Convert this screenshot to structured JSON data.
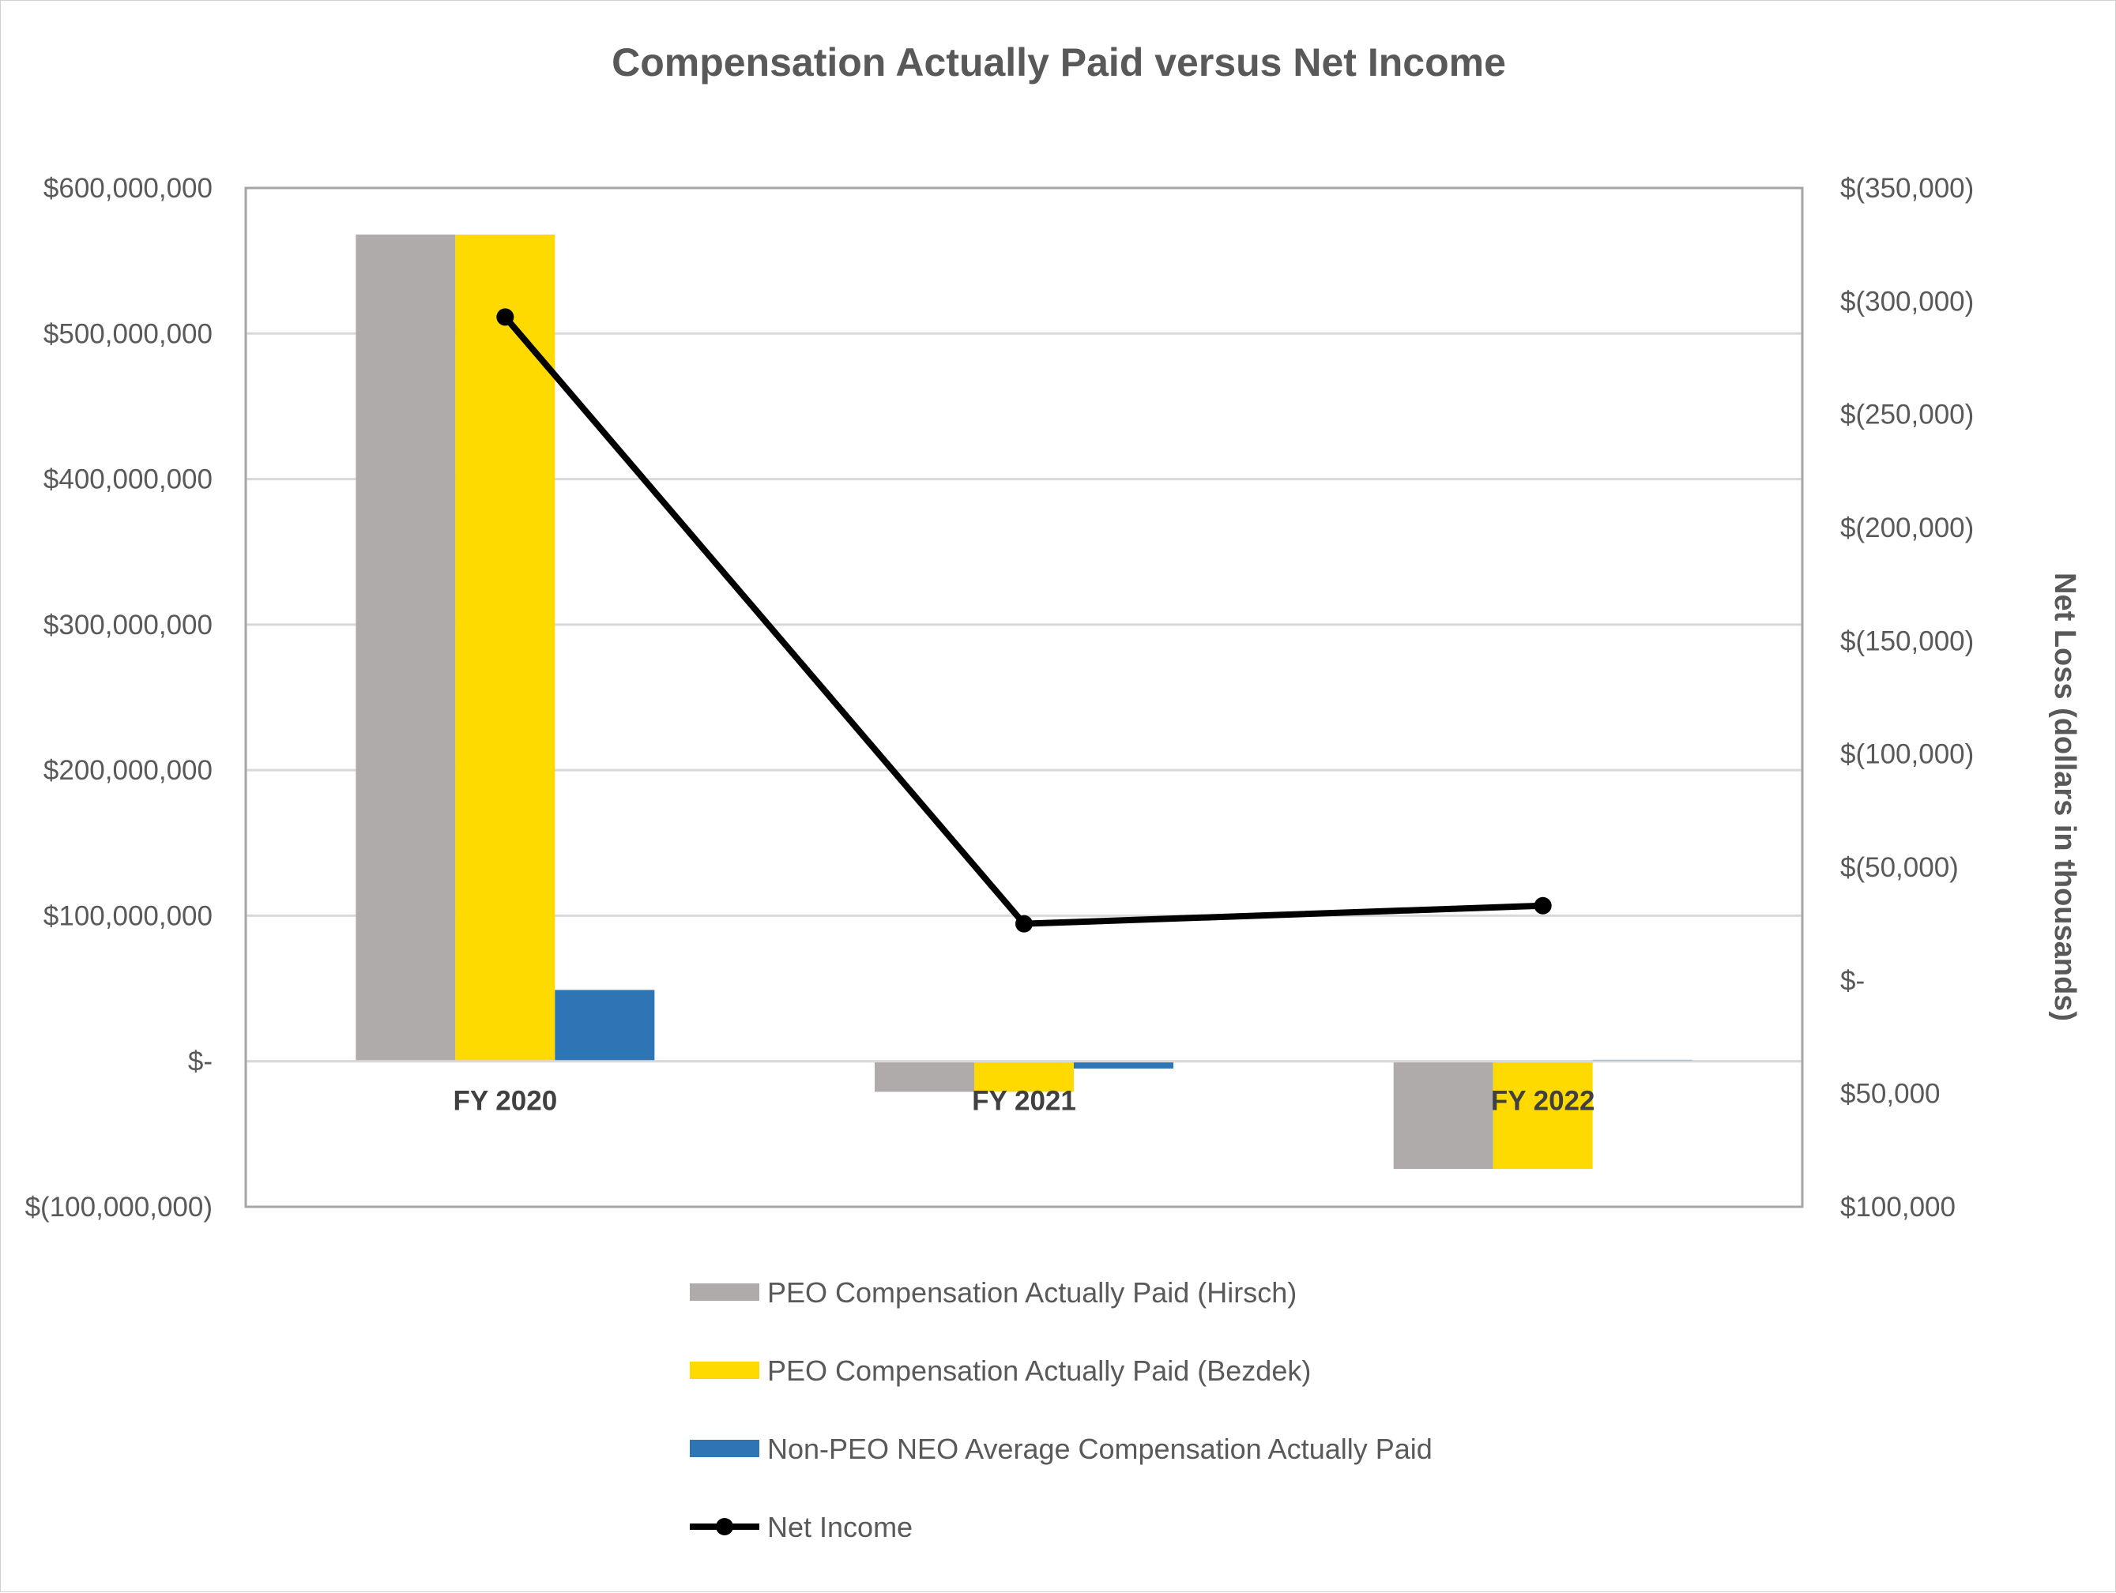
{
  "chart_data": {
    "type": "bar",
    "title": "Compensation Actually Paid versus Net Income",
    "categories": [
      "FY 2020",
      "FY 2021",
      "FY 2022"
    ],
    "y_left": {
      "min": -100000000,
      "max": 600000000,
      "ticks": [
        600000000,
        500000000,
        400000000,
        300000000,
        200000000,
        100000000,
        0,
        -100000000
      ],
      "tick_labels": [
        "$600,000,000",
        "$500,000,000",
        "$400,000,000",
        "$300,000,000",
        "$200,000,000",
        "$100,000,000",
        "$-",
        "$(100,000,000)"
      ]
    },
    "y_right": {
      "label": "Net Loss (dollars in thousands)",
      "top": -350000,
      "bottom": 100000,
      "ticks": [
        -350000,
        -300000,
        -250000,
        -200000,
        -150000,
        -100000,
        -50000,
        0,
        50000,
        100000
      ],
      "tick_labels": [
        "$(350,000)",
        "$(300,000)",
        "$(250,000)",
        "$(200,000)",
        "$(150,000)",
        "$(100,000)",
        "$(50,000)",
        "$-",
        "$50,000",
        "$100,000"
      ]
    },
    "grid": true,
    "legend_position": "bottom",
    "series": [
      {
        "name": "PEO Compensation Actually Paid (Hirsch)",
        "type": "bar",
        "axis": "left",
        "color": "#afabab",
        "values": [
          568000000,
          -21000000,
          -74000000
        ]
      },
      {
        "name": "PEO Compensation Actually Paid (Bezdek)",
        "type": "bar",
        "axis": "left",
        "color": "#ffda00",
        "values": [
          568000000,
          -21000000,
          -74000000
        ]
      },
      {
        "name": "Non-PEO NEO Average Compensation Actually Paid",
        "type": "bar",
        "axis": "left",
        "color": "#2e75b6",
        "values": [
          49000000,
          -5000000,
          1000000
        ]
      },
      {
        "name": "Net Income",
        "type": "line",
        "axis": "right",
        "color": "#000000",
        "values": [
          -293000,
          -25000,
          -33000
        ]
      }
    ]
  }
}
